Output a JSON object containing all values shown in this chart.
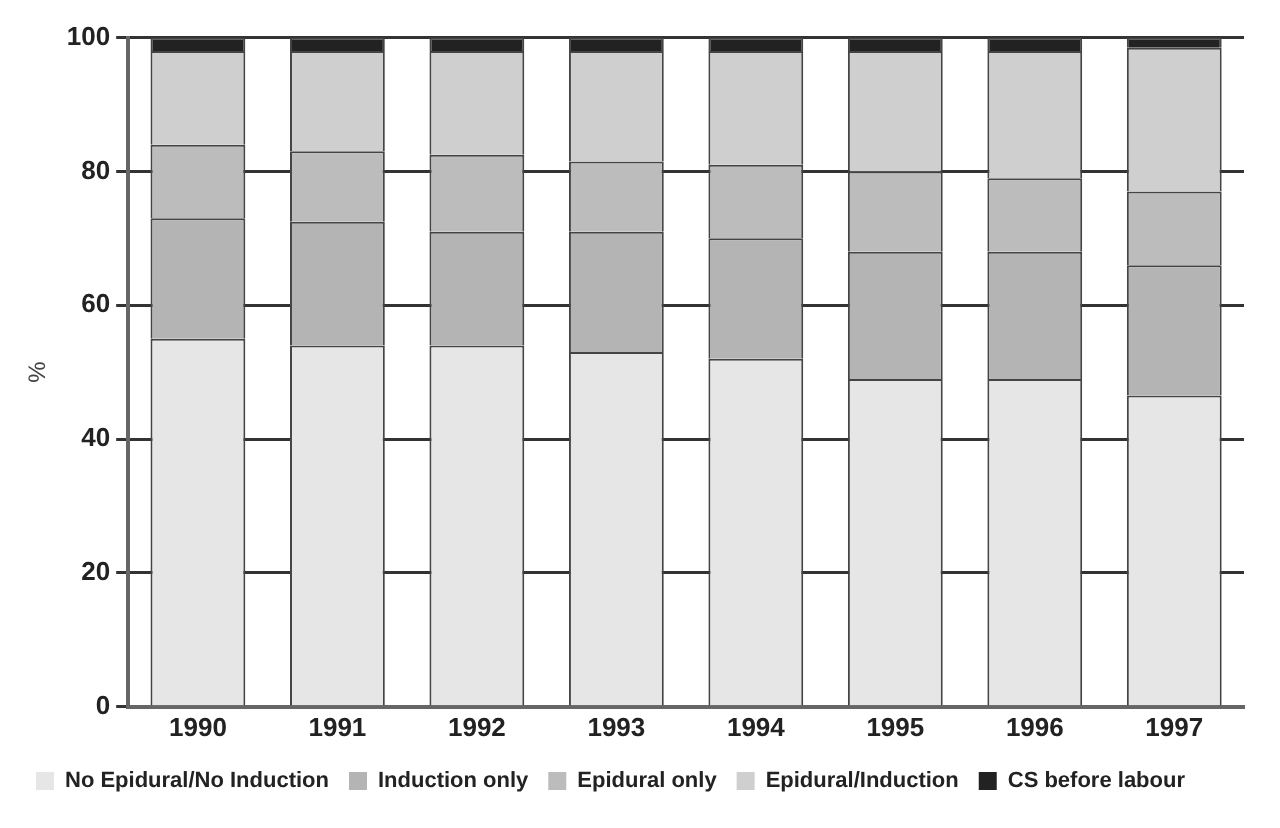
{
  "chart_data": {
    "type": "bar",
    "stacked": true,
    "ylabel": "%",
    "categories": [
      "1990",
      "1991",
      "1992",
      "1993",
      "1994",
      "1995",
      "1996",
      "1997"
    ],
    "series": [
      {
        "name": "No Epidural/No Induction",
        "color": "#e6e6e6",
        "values": [
          55,
          54,
          54,
          53,
          52,
          49,
          49,
          46.5
        ]
      },
      {
        "name": "Induction only",
        "color": "#b4b4b4",
        "values": [
          18,
          18.5,
          17,
          18,
          18,
          19,
          19,
          19.5
        ]
      },
      {
        "name": "Epidural only",
        "color": "#bcbcbc",
        "values": [
          11,
          10.5,
          11.5,
          10.5,
          11,
          12,
          11,
          11
        ]
      },
      {
        "name": "Epidural/Induction",
        "color": "#cfcfcf",
        "values": [
          14,
          15,
          15.5,
          16.5,
          17,
          18,
          19,
          21.5
        ]
      },
      {
        "name": "CS before labour",
        "color": "#222222",
        "values": [
          2,
          2,
          2,
          2,
          2,
          2,
          2,
          1.5
        ]
      }
    ],
    "ylim": [
      0,
      100
    ],
    "yticks": [
      0,
      20,
      40,
      60,
      80,
      100
    ],
    "grid": "y",
    "legend": "bottom"
  }
}
